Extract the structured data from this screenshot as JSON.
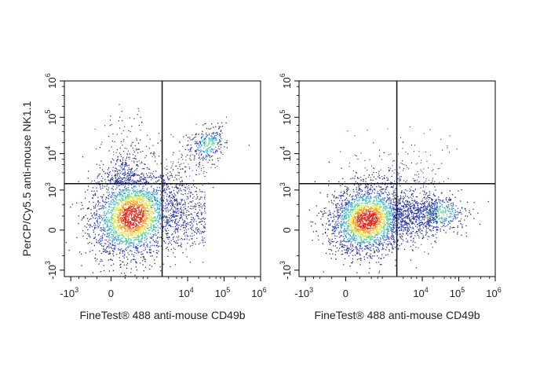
{
  "chart_data": [
    {
      "type": "scatter",
      "subtype": "flow-cytometry-density-dot-plot",
      "panel": "left",
      "xlabel": "FineTest® 488 anti-mouse CD49b",
      "ylabel": "PerCP/Cy5.5 anti-mouse NK1.1",
      "x_scale": "biexponential",
      "y_scale": "biexponential",
      "xlim": [
        -1500,
        1000000
      ],
      "ylim": [
        -1500,
        1000000
      ],
      "x_ticks": [
        {
          "value": -1000,
          "base": "-10",
          "exp": "3"
        },
        {
          "value": 0,
          "base": "0",
          "exp": ""
        },
        {
          "value": 10000,
          "base": "10",
          "exp": "4"
        },
        {
          "value": 100000,
          "base": "10",
          "exp": "5"
        },
        {
          "value": 1000000,
          "base": "10",
          "exp": "6"
        }
      ],
      "y_ticks": [
        {
          "value": -1000,
          "base": "-10",
          "exp": "3"
        },
        {
          "value": 0,
          "base": "0",
          "exp": ""
        },
        {
          "value": 1000,
          "base": "10",
          "exp": "3"
        },
        {
          "value": 10000,
          "base": "10",
          "exp": "4"
        },
        {
          "value": 100000,
          "base": "10",
          "exp": "5"
        },
        {
          "value": 1000000,
          "base": "10",
          "exp": "6"
        }
      ],
      "quadrant_gate": {
        "x": 2000,
        "y": 1500
      },
      "populations": [
        {
          "name": "double-negative",
          "x": 300,
          "y": 200,
          "relative_density": "very high"
        },
        {
          "name": "CD49b+NK1.1+",
          "x": 35000,
          "y": 18000,
          "relative_density": "medium"
        },
        {
          "name": "NK1.1+CD49b- streak",
          "x": 200,
          "y": 40000,
          "relative_density": "low"
        },
        {
          "name": "CD49b+ tail",
          "x": 6000,
          "y": 300,
          "relative_density": "low"
        }
      ]
    },
    {
      "type": "scatter",
      "subtype": "flow-cytometry-density-dot-plot",
      "panel": "right",
      "xlabel": "FineTest® 488 anti-mouse CD49b",
      "ylabel": "",
      "x_scale": "biexponential",
      "y_scale": "biexponential",
      "xlim": [
        -1500,
        1000000
      ],
      "ylim": [
        -1500,
        1000000
      ],
      "x_ticks": [
        {
          "value": -1000,
          "base": "-10",
          "exp": "3"
        },
        {
          "value": 0,
          "base": "0",
          "exp": ""
        },
        {
          "value": 10000,
          "base": "10",
          "exp": "4"
        },
        {
          "value": 100000,
          "base": "10",
          "exp": "5"
        },
        {
          "value": 1000000,
          "base": "10",
          "exp": "6"
        }
      ],
      "y_ticks": [
        {
          "value": -1000,
          "base": "-10",
          "exp": "3"
        },
        {
          "value": 0,
          "base": "0",
          "exp": ""
        },
        {
          "value": 1000,
          "base": "10",
          "exp": "3"
        },
        {
          "value": 10000,
          "base": "10",
          "exp": "4"
        },
        {
          "value": 100000,
          "base": "10",
          "exp": "5"
        },
        {
          "value": 1000000,
          "base": "10",
          "exp": "6"
        }
      ],
      "quadrant_gate": {
        "x": 2000,
        "y": 1500
      },
      "populations": [
        {
          "name": "double-negative",
          "x": 300,
          "y": 150,
          "relative_density": "very high"
        },
        {
          "name": "CD49b+NK1.1-",
          "x": 30000,
          "y": 250,
          "relative_density": "medium"
        },
        {
          "name": "sparse upper",
          "x": 2000,
          "y": 8000,
          "relative_density": "very low"
        }
      ]
    }
  ],
  "colors": {
    "axis": "#000000",
    "gate": "#111111",
    "density_scale": [
      "#1f2a8c",
      "#3b4fc4",
      "#36a4d8",
      "#4fd39a",
      "#e6e23a",
      "#f39a24",
      "#e0241b"
    ]
  }
}
